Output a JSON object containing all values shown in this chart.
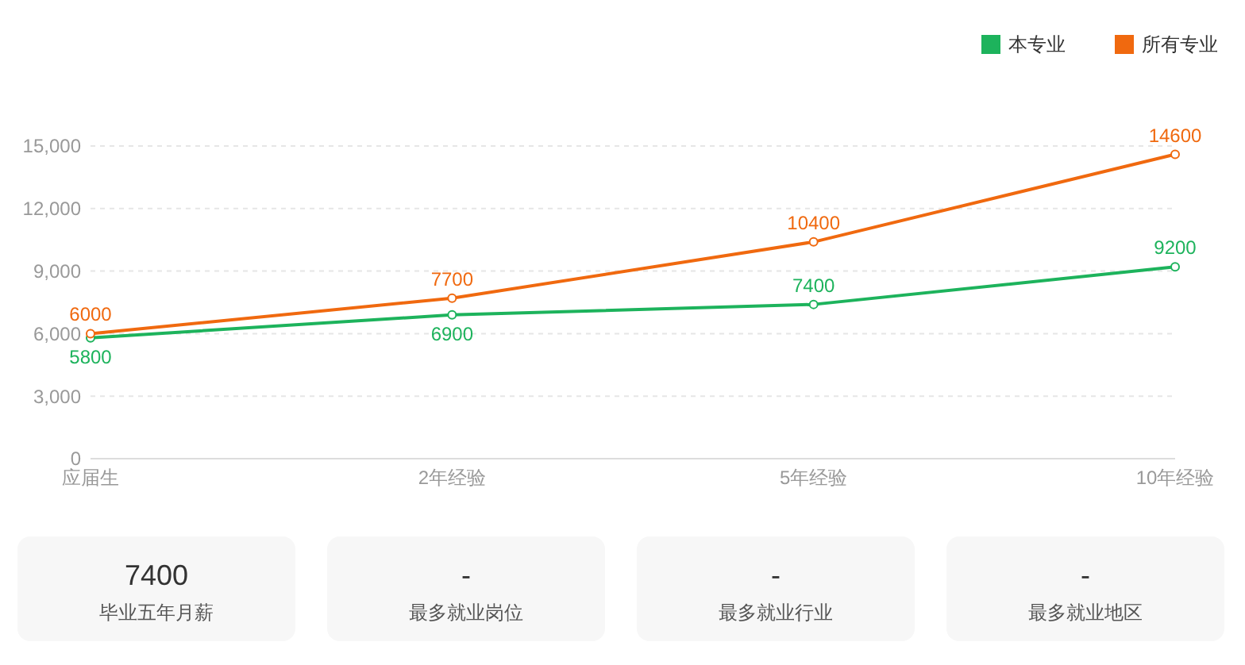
{
  "chart_data": [
    {
      "type": "line",
      "categories": [
        "应届生",
        "2年经验",
        "5年经验",
        "10年经验"
      ],
      "series": [
        {
          "name": "本专业",
          "color": "#1db35c",
          "values": [
            5800,
            6900,
            7400,
            9200
          ]
        },
        {
          "name": "所有专业",
          "color": "#f0690f",
          "values": [
            6000,
            7700,
            10400,
            14600
          ]
        }
      ],
      "ylim": [
        0,
        15000
      ],
      "yticks": [
        {
          "value": 0,
          "label": "0"
        },
        {
          "value": 3000,
          "label": "3,000"
        },
        {
          "value": 6000,
          "label": "6,000"
        },
        {
          "value": 9000,
          "label": "9,000"
        },
        {
          "value": 12000,
          "label": "12,000"
        },
        {
          "value": 15000,
          "label": "15,000"
        }
      ],
      "grid": "y",
      "legend": "top right",
      "marker": "circle",
      "data_labels": true
    },
    {
      "type": "other",
      "annotations": [
        "7400",
        "毕业五年月薪",
        "-",
        "最多就业岗位",
        "-",
        "最多就业行业",
        "-",
        "最多就业地区"
      ]
    }
  ]
}
